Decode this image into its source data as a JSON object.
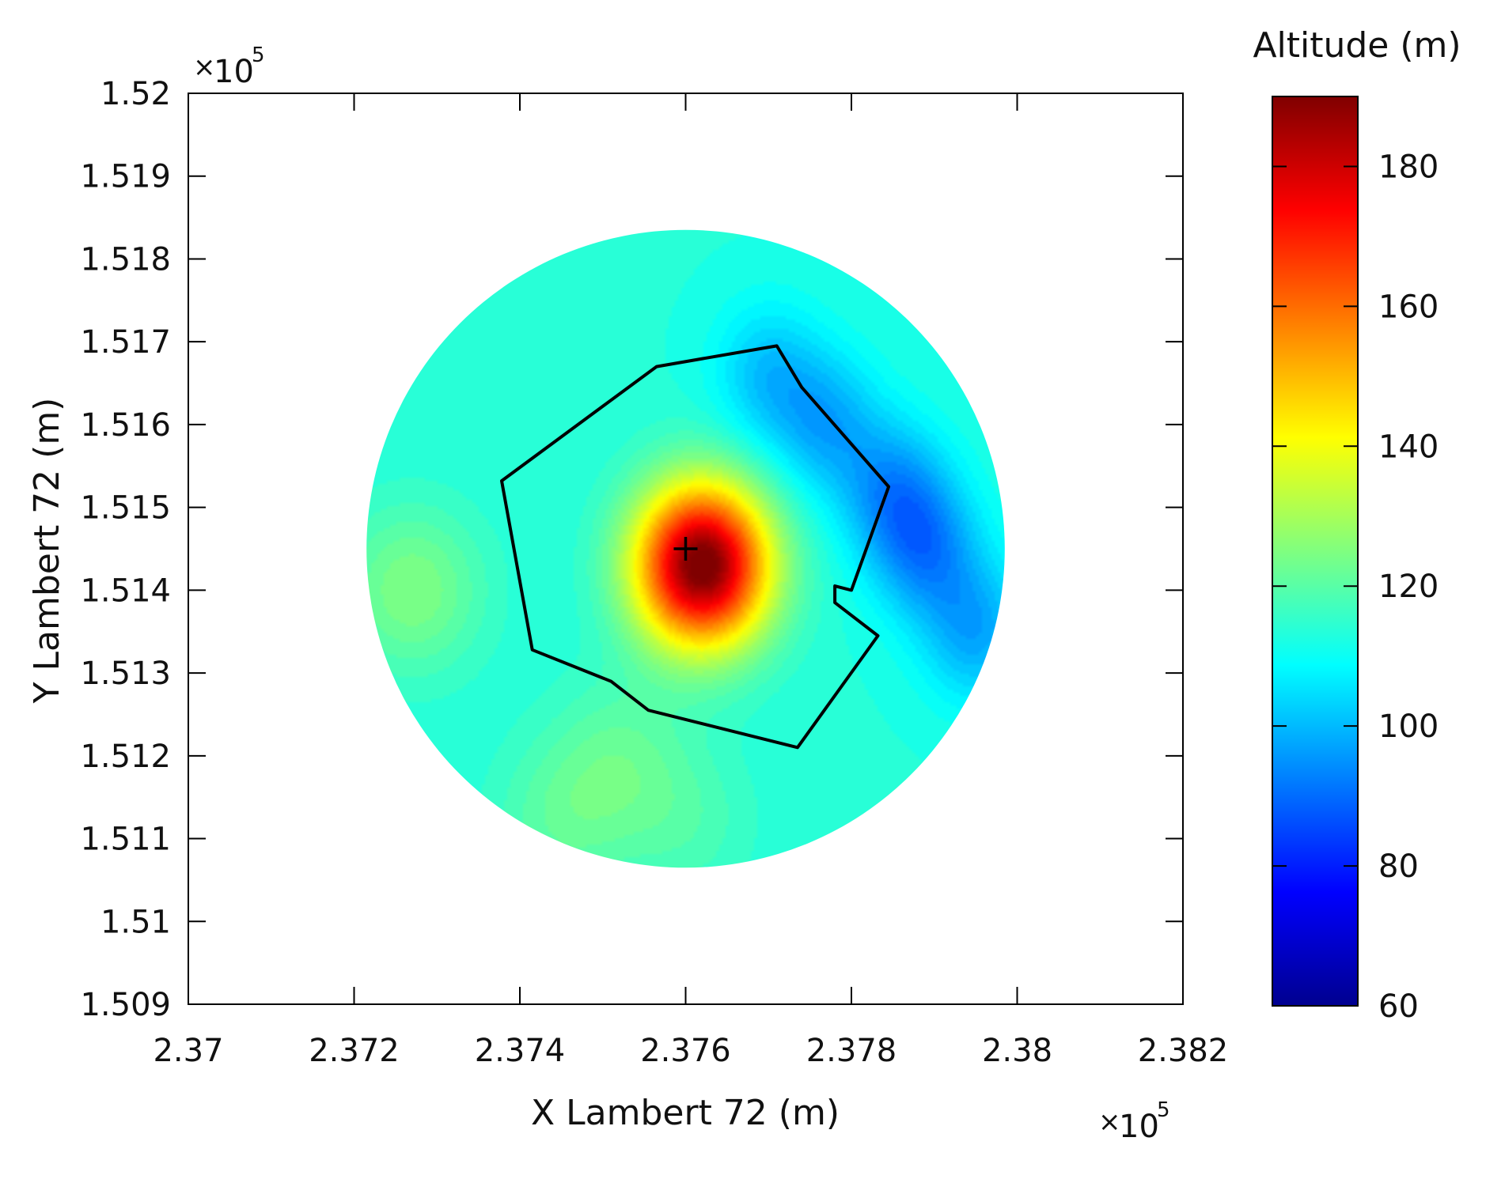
{
  "chart_data": {
    "type": "heatmap",
    "title": "",
    "xlabel": "X Lambert 72 (m)",
    "ylabel": "Y Lambert 72 (m)",
    "x_scale_label": {
      "times": "×",
      "base": "10",
      "exp": "5"
    },
    "y_scale_label": {
      "times": "×",
      "base": "10",
      "exp": "5"
    },
    "xlim": [
      2.37,
      2.382
    ],
    "ylim": [
      1.509,
      1.52
    ],
    "x_ticks": [
      2.37,
      2.372,
      2.374,
      2.376,
      2.378,
      2.38,
      2.382
    ],
    "x_tick_labels": [
      "2.37",
      "2.372",
      "2.374",
      "2.376",
      "2.378",
      "2.38",
      "2.382"
    ],
    "y_ticks": [
      1.509,
      1.51,
      1.511,
      1.512,
      1.513,
      1.514,
      1.515,
      1.516,
      1.517,
      1.518,
      1.519,
      1.52
    ],
    "y_tick_labels": [
      "1.509",
      "1.51",
      "1.511",
      "1.512",
      "1.513",
      "1.514",
      "1.515",
      "1.516",
      "1.517",
      "1.518",
      "1.519",
      "1.52"
    ],
    "grid": false,
    "colorbar": {
      "title": "Altitude (m)",
      "colormap": "jet",
      "range": [
        60,
        190
      ],
      "ticks": [
        60,
        80,
        100,
        120,
        140,
        160,
        180
      ],
      "tick_labels": [
        "60",
        "80",
        "100",
        "120",
        "140",
        "160",
        "180"
      ]
    },
    "disc": {
      "center": [
        2.376,
        1.5145
      ],
      "radius": 0.00385
    },
    "peak": {
      "location": [
        2.3762,
        1.5143
      ],
      "altitude": 190
    },
    "low_areas": [
      {
        "location": [
          2.3789,
          1.5145
        ],
        "altitude": 95
      },
      {
        "location": [
          2.3785,
          1.5152
        ],
        "altitude": 97
      },
      {
        "location": [
          2.377,
          1.5166
        ],
        "altitude": 101
      },
      {
        "location": [
          2.3795,
          1.5135
        ],
        "altitude": 98
      },
      {
        "location": [
          2.3777,
          1.516
        ],
        "altitude": 99
      }
    ],
    "high_areas": [
      {
        "location": [
          2.3727,
          1.514
        ],
        "altitude": 125
      },
      {
        "location": [
          2.3752,
          1.512
        ],
        "altitude": 120
      },
      {
        "location": [
          2.376,
          1.5112
        ],
        "altitude": 118
      },
      {
        "location": [
          2.3745,
          1.5112
        ],
        "altitude": 120
      }
    ],
    "peak_shape": {
      "sigma_x": 0.00056,
      "sigma_y": 0.00068,
      "amplitude": 80
    },
    "baseline_altitude": 113,
    "boundary_polygon": [
      [
        2.37565,
        1.5167
      ],
      [
        2.3771,
        1.51695
      ],
      [
        2.3774,
        1.51645
      ],
      [
        2.37845,
        1.51525
      ],
      [
        2.378,
        1.514
      ],
      [
        2.3778,
        1.51405
      ],
      [
        2.3778,
        1.51385
      ],
      [
        2.37832,
        1.51345
      ],
      [
        2.37735,
        1.5121
      ],
      [
        2.37555,
        1.51255
      ],
      [
        2.3751,
        1.5129
      ],
      [
        2.37415,
        1.51328
      ],
      [
        2.37378,
        1.51532
      ]
    ],
    "marker": {
      "symbol": "+",
      "location": [
        2.376,
        1.5145
      ]
    }
  }
}
